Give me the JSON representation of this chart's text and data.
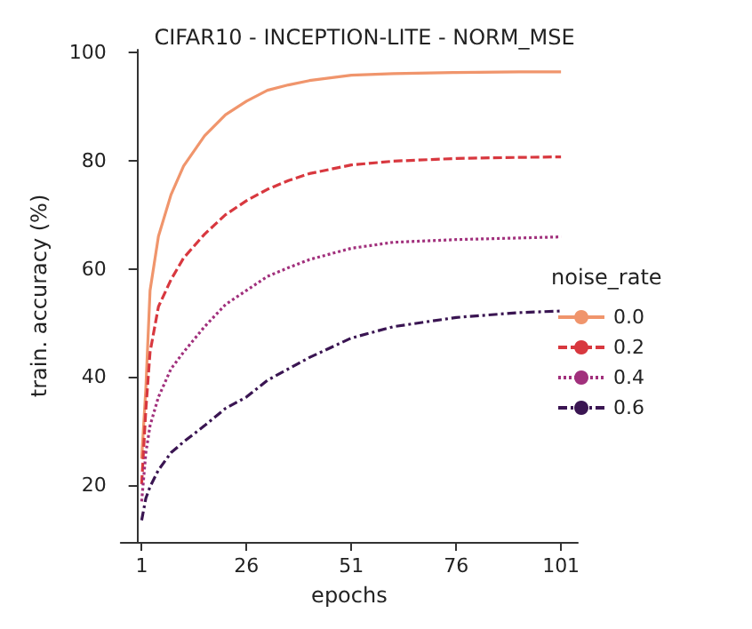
{
  "chart_data": {
    "type": "line",
    "title": "CIFAR10 - INCEPTION-LITE - NORM_MSE",
    "xlabel": "epochs",
    "ylabel": "train. accuracy (%)",
    "legend_title": "noise_rate",
    "x": [
      1,
      2,
      3,
      5,
      8,
      11,
      16,
      21,
      26,
      31,
      36,
      41,
      51,
      61,
      76,
      91,
      101
    ],
    "series": [
      {
        "name": "0.0",
        "color": "#f0956c",
        "line_style": "solid",
        "values": [
          24.9,
          38,
          56,
          66,
          73.7,
          79,
          84.6,
          88.5,
          91,
          93,
          94,
          94.8,
          95.8,
          96.1,
          96.3,
          96.4,
          96.4
        ]
      },
      {
        "name": "0.2",
        "color": "#d8383f",
        "line_style": "dashed",
        "values": [
          20.2,
          34,
          44.6,
          53,
          58,
          62,
          66.4,
          70,
          72.6,
          74.7,
          76.3,
          77.6,
          79.2,
          79.9,
          80.4,
          80.6,
          80.7
        ]
      },
      {
        "name": "0.4",
        "color": "#a1307c",
        "line_style": "dotted",
        "values": [
          17,
          26,
          31,
          36.3,
          41.5,
          44.6,
          49.3,
          53.4,
          56,
          58.6,
          60.2,
          61.7,
          63.8,
          64.9,
          65.4,
          65.7,
          65.9
        ]
      },
      {
        "name": "0.6",
        "color": "#3a1552",
        "line_style": "dashdot",
        "values": [
          13.5,
          17.6,
          19.7,
          22.8,
          26,
          28,
          31,
          34.2,
          36.3,
          39.4,
          41.5,
          43.6,
          47.2,
          49.3,
          51,
          51.9,
          52.2
        ]
      }
    ],
    "xlim": [
      -4,
      105
    ],
    "xticks": [
      1,
      26,
      51,
      76,
      101
    ],
    "ylim": [
      9.5,
      100.5
    ],
    "yticks": [
      20,
      40,
      60,
      80,
      100
    ],
    "grid": false,
    "legend": "right",
    "marker": "none"
  }
}
